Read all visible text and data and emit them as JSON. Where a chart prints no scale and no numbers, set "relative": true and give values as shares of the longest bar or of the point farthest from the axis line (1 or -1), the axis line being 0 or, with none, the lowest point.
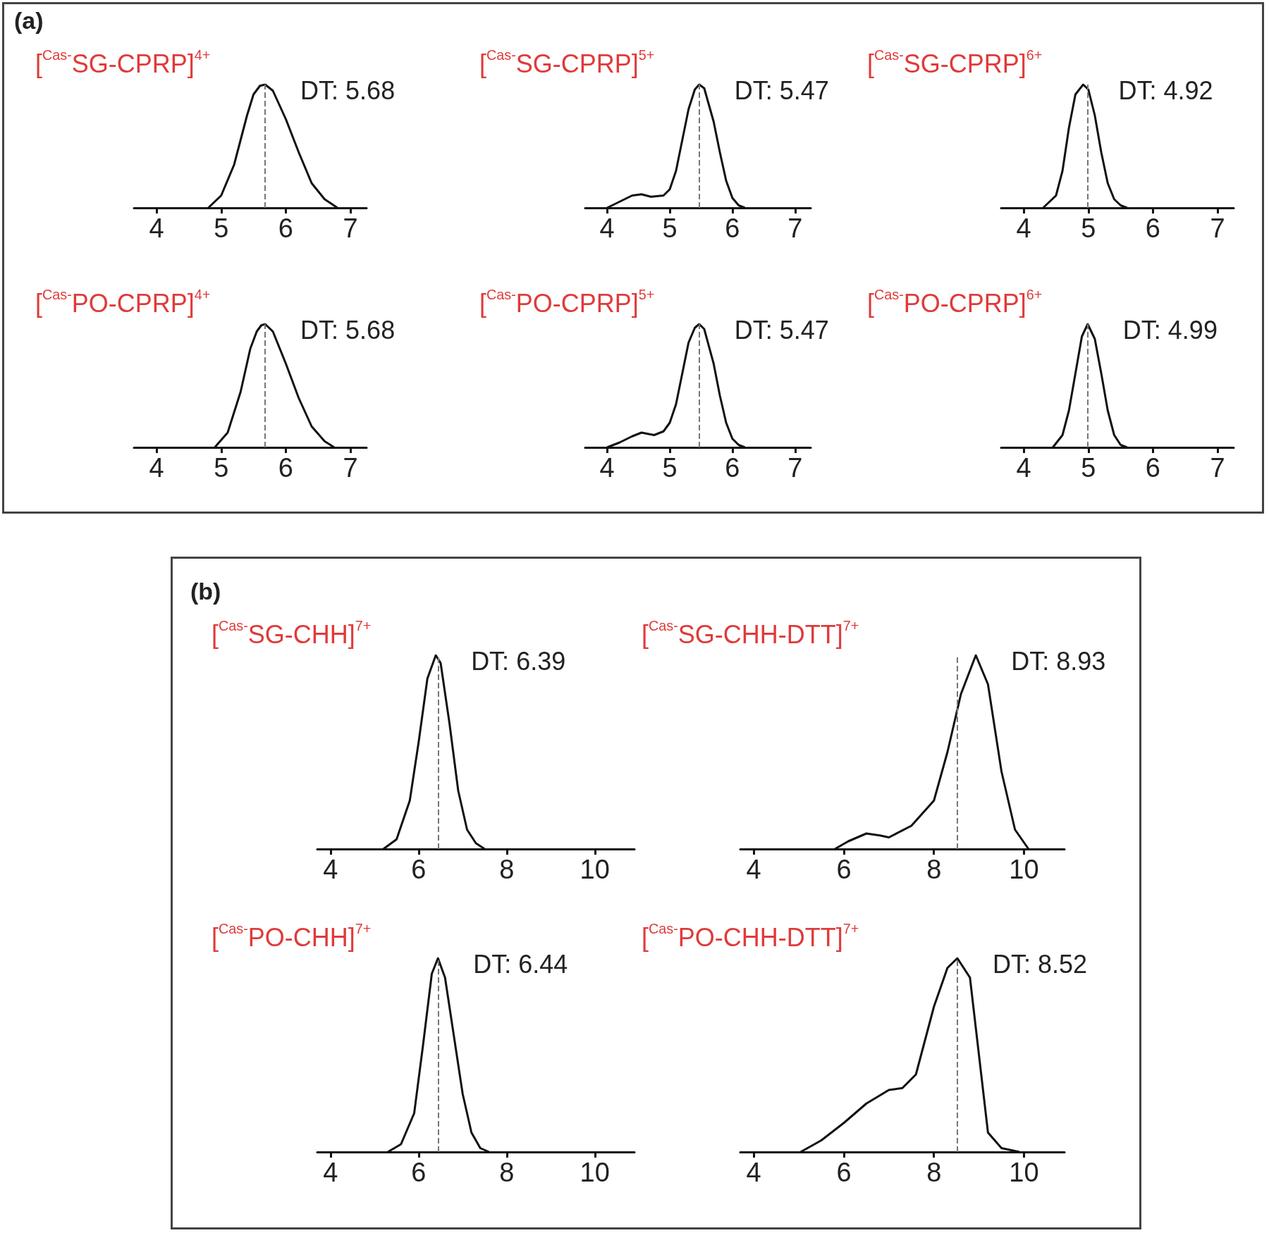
{
  "chart_data": [
    {
      "type": "line",
      "relative": true,
      "title": "[$^{Cas-}$SG-CPRP]$^{4+}$",
      "annotations": [
        "(a)",
        {
          "text": "DT: 5.68",
          "x": 5.68,
          "y": 1
        }
      ],
      "xlim": [
        3.65,
        7.25
      ],
      "xticks": [
        4,
        5,
        6,
        7
      ],
      "ref_lines": [
        {
          "axis": "x",
          "value": 5.68,
          "color": "#777777",
          "line_style": "dashed"
        }
      ],
      "series": [
        {
          "color": "#111111",
          "x": [
            4.8,
            5.0,
            5.2,
            5.4,
            5.5,
            5.6,
            5.68,
            5.8,
            6.0,
            6.2,
            6.4,
            6.6,
            6.8
          ],
          "values": [
            0,
            0.1,
            0.35,
            0.75,
            0.92,
            0.99,
            1,
            0.95,
            0.72,
            0.45,
            0.2,
            0.07,
            0
          ]
        }
      ]
    },
    {
      "type": "line",
      "relative": true,
      "title": "[$^{Cas-}$SG-CPRP]$^{5+}$",
      "annotations": [
        {
          "text": "DT: 5.47",
          "x": 5.47,
          "y": 1
        }
      ],
      "xlim": [
        3.65,
        7.25
      ],
      "xticks": [
        4,
        5,
        6,
        7
      ],
      "ref_lines": [
        {
          "axis": "x",
          "value": 5.47,
          "color": "#777777",
          "line_style": "dashed"
        }
      ],
      "series": [
        {
          "color": "#111111",
          "x": [
            4.0,
            4.2,
            4.4,
            4.55,
            4.7,
            4.9,
            5.0,
            5.1,
            5.2,
            5.3,
            5.4,
            5.47,
            5.55,
            5.7,
            5.8,
            5.9,
            6.0,
            6.1,
            6.2
          ],
          "values": [
            0,
            0.05,
            0.1,
            0.11,
            0.09,
            0.1,
            0.15,
            0.3,
            0.55,
            0.8,
            0.96,
            1,
            0.97,
            0.7,
            0.45,
            0.22,
            0.08,
            0.02,
            0
          ]
        }
      ]
    },
    {
      "type": "line",
      "relative": true,
      "title": "[$^{Cas-}$SG-CPRP]$^{6+}$",
      "annotations": [
        {
          "text": "DT: 4.92",
          "x": 4.92,
          "y": 1
        }
      ],
      "xlim": [
        3.65,
        7.25
      ],
      "xticks": [
        4,
        5,
        6,
        7
      ],
      "ref_lines": [
        {
          "axis": "x",
          "value": 4.99,
          "color": "#777777",
          "line_style": "dashed"
        }
      ],
      "series": [
        {
          "color": "#111111",
          "x": [
            4.3,
            4.5,
            4.6,
            4.7,
            4.8,
            4.92,
            5.0,
            5.1,
            5.2,
            5.3,
            5.4,
            5.5,
            5.6
          ],
          "values": [
            0,
            0.1,
            0.3,
            0.65,
            0.92,
            1,
            0.96,
            0.75,
            0.45,
            0.2,
            0.07,
            0.02,
            0
          ]
        }
      ]
    },
    {
      "type": "line",
      "relative": true,
      "title": "[$^{Cas-}$PO-CPRP]$^{4+}$",
      "annotations": [
        {
          "text": "DT: 5.68",
          "x": 5.68,
          "y": 1
        }
      ],
      "xlim": [
        3.65,
        7.25
      ],
      "xticks": [
        4,
        5,
        6,
        7
      ],
      "ref_lines": [
        {
          "axis": "x",
          "value": 5.68,
          "color": "#777777",
          "line_style": "dashed"
        }
      ],
      "series": [
        {
          "color": "#111111",
          "x": [
            4.9,
            5.1,
            5.3,
            5.45,
            5.55,
            5.62,
            5.68,
            5.8,
            6.0,
            6.2,
            6.4,
            6.6,
            6.75
          ],
          "values": [
            0,
            0.12,
            0.45,
            0.8,
            0.94,
            0.99,
            1,
            0.94,
            0.68,
            0.4,
            0.17,
            0.05,
            0
          ]
        }
      ]
    },
    {
      "type": "line",
      "relative": true,
      "title": "[$^{Cas-}$PO-CPRP]$^{5+}$",
      "annotations": [
        {
          "text": "DT: 5.47",
          "x": 5.47,
          "y": 1
        }
      ],
      "xlim": [
        3.65,
        7.25
      ],
      "xticks": [
        4,
        5,
        6,
        7
      ],
      "ref_lines": [
        {
          "axis": "x",
          "value": 5.47,
          "color": "#777777",
          "line_style": "dashed"
        }
      ],
      "series": [
        {
          "color": "#111111",
          "x": [
            4.0,
            4.2,
            4.4,
            4.55,
            4.75,
            4.9,
            5.0,
            5.1,
            5.2,
            5.3,
            5.4,
            5.47,
            5.55,
            5.7,
            5.8,
            5.9,
            6.0,
            6.1,
            6.2
          ],
          "values": [
            0,
            0.04,
            0.09,
            0.12,
            0.1,
            0.13,
            0.2,
            0.35,
            0.6,
            0.85,
            0.97,
            1,
            0.96,
            0.68,
            0.42,
            0.2,
            0.07,
            0.02,
            0
          ]
        }
      ]
    },
    {
      "type": "line",
      "relative": true,
      "title": "[$^{Cas-}$PO-CPRP]$^{6+}$",
      "annotations": [
        {
          "text": "DT: 4.99",
          "x": 4.99,
          "y": 1
        }
      ],
      "xlim": [
        3.65,
        7.25
      ],
      "xticks": [
        4,
        5,
        6,
        7
      ],
      "ref_lines": [
        {
          "axis": "x",
          "value": 4.99,
          "color": "#777777",
          "line_style": "dashed"
        }
      ],
      "series": [
        {
          "color": "#111111",
          "x": [
            4.45,
            4.6,
            4.7,
            4.8,
            4.9,
            4.99,
            5.1,
            5.2,
            5.3,
            5.4,
            5.5,
            5.6
          ],
          "values": [
            0,
            0.1,
            0.3,
            0.6,
            0.9,
            1,
            0.88,
            0.6,
            0.3,
            0.1,
            0.02,
            0
          ]
        }
      ]
    },
    {
      "type": "line",
      "relative": true,
      "title": "[$^{Cas-}$SG-CHH]$^{7+}$",
      "annotations": [
        "(b)",
        {
          "text": "DT: 6.39",
          "x": 6.39,
          "y": 1
        }
      ],
      "xlim": [
        3.7,
        10.9
      ],
      "xticks": [
        4,
        6,
        8,
        10
      ],
      "ref_lines": [
        {
          "axis": "x",
          "value": 6.44,
          "color": "#777777",
          "line_style": "dashed"
        }
      ],
      "series": [
        {
          "color": "#111111",
          "x": [
            5.2,
            5.5,
            5.8,
            6.0,
            6.2,
            6.39,
            6.5,
            6.7,
            6.9,
            7.1,
            7.3,
            7.5
          ],
          "values": [
            0,
            0.05,
            0.25,
            0.55,
            0.88,
            1,
            0.96,
            0.65,
            0.3,
            0.1,
            0.03,
            0
          ]
        }
      ]
    },
    {
      "type": "line",
      "relative": true,
      "title": "[$^{Cas-}$SG-CHH-DTT]$^{7+}$",
      "annotations": [
        {
          "text": "DT: 8.93",
          "x": 8.93,
          "y": 1
        }
      ],
      "xlim": [
        3.7,
        10.9
      ],
      "xticks": [
        4,
        6,
        8,
        10
      ],
      "ref_lines": [
        {
          "axis": "x",
          "value": 8.52,
          "color": "#777777",
          "line_style": "dashed"
        }
      ],
      "series": [
        {
          "color": "#111111",
          "x": [
            5.8,
            6.1,
            6.5,
            6.8,
            7.0,
            7.5,
            8.0,
            8.3,
            8.6,
            8.93,
            9.2,
            9.5,
            9.8,
            10.1
          ],
          "values": [
            0,
            0.04,
            0.08,
            0.07,
            0.06,
            0.12,
            0.25,
            0.5,
            0.8,
            1,
            0.85,
            0.4,
            0.1,
            0
          ]
        }
      ]
    },
    {
      "type": "line",
      "relative": true,
      "title": "[$^{Cas-}$PO-CHH]$^{7+}$",
      "annotations": [
        {
          "text": "DT: 6.44",
          "x": 6.44,
          "y": 1
        }
      ],
      "xlim": [
        3.7,
        10.9
      ],
      "xticks": [
        4,
        6,
        8,
        10
      ],
      "ref_lines": [
        {
          "axis": "x",
          "value": 6.44,
          "color": "#777777",
          "line_style": "dashed"
        }
      ],
      "series": [
        {
          "color": "#111111",
          "x": [
            5.3,
            5.6,
            5.9,
            6.1,
            6.3,
            6.44,
            6.6,
            6.8,
            7.0,
            7.2,
            7.4,
            7.6
          ],
          "values": [
            0,
            0.04,
            0.2,
            0.55,
            0.92,
            1,
            0.9,
            0.6,
            0.3,
            0.1,
            0.02,
            0
          ]
        }
      ]
    },
    {
      "type": "line",
      "relative": true,
      "title": "[$^{Cas-}$PO-CHH-DTT]$^{7+}$",
      "annotations": [
        {
          "text": "DT: 8.52",
          "x": 8.52,
          "y": 1
        }
      ],
      "xlim": [
        3.7,
        10.9
      ],
      "xticks": [
        4,
        6,
        8,
        10
      ],
      "ref_lines": [
        {
          "axis": "x",
          "value": 8.52,
          "color": "#777777",
          "line_style": "dashed"
        }
      ],
      "series": [
        {
          "color": "#111111",
          "x": [
            5.04,
            5.5,
            6.0,
            6.5,
            7.0,
            7.3,
            7.6,
            8.0,
            8.3,
            8.52,
            8.8,
            9.0,
            9.2,
            9.5,
            9.9
          ],
          "values": [
            0,
            0.06,
            0.15,
            0.25,
            0.32,
            0.33,
            0.4,
            0.75,
            0.95,
            1,
            0.9,
            0.5,
            0.1,
            0.02,
            0
          ]
        }
      ]
    }
  ]
}
